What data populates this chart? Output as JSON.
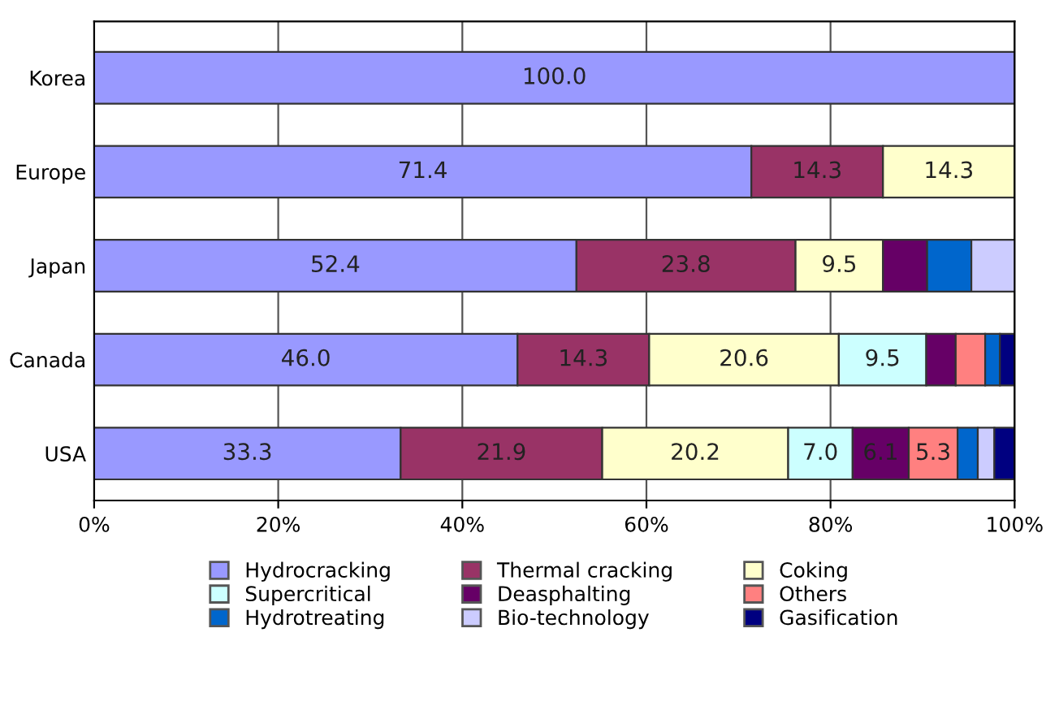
{
  "chart_data": {
    "type": "bar",
    "orientation": "horizontal",
    "stacked": true,
    "categories": [
      "Korea",
      "Europe",
      "Japan",
      "Canada",
      "USA"
    ],
    "series": [
      {
        "name": "Hydrocracking",
        "color": "#9999ff",
        "values": [
          100.0,
          71.4,
          52.4,
          46.0,
          33.3
        ],
        "value_labels": [
          "100.0",
          "71.4",
          "52.4",
          "46.0",
          "33.3"
        ]
      },
      {
        "name": "Thermal cracking",
        "color": "#993366",
        "values": [
          null,
          14.3,
          23.8,
          14.3,
          21.9
        ],
        "value_labels": [
          null,
          "14.3",
          "23.8",
          "14.3",
          "21.9"
        ]
      },
      {
        "name": "Coking",
        "color": "#ffffcc",
        "values": [
          null,
          14.3,
          9.5,
          20.6,
          20.2
        ],
        "value_labels": [
          null,
          "14.3",
          "9.5",
          "20.6",
          "20.2"
        ]
      },
      {
        "name": "Supercritical",
        "color": "#ccffff",
        "values": [
          null,
          null,
          null,
          9.5,
          7.0
        ],
        "value_labels": [
          null,
          null,
          null,
          "9.5",
          "7.0"
        ]
      },
      {
        "name": "Deasphalting",
        "color": "#660066",
        "values": [
          null,
          null,
          4.8,
          3.2,
          6.1
        ],
        "value_labels": [
          null,
          null,
          null,
          null,
          "6.1"
        ]
      },
      {
        "name": "Others",
        "color": "#ff8080",
        "values": [
          null,
          null,
          null,
          3.2,
          5.3
        ],
        "value_labels": [
          null,
          null,
          null,
          null,
          "5.3"
        ]
      },
      {
        "name": "Hydrotreating",
        "color": "#0066cc",
        "values": [
          null,
          null,
          4.8,
          1.6,
          2.2
        ]
      },
      {
        "name": "Bio-technology",
        "color": "#ccccff",
        "values": [
          null,
          null,
          4.8,
          null,
          1.8
        ]
      },
      {
        "name": "Gasification",
        "color": "#000080",
        "values": [
          null,
          null,
          null,
          1.6,
          2.2
        ]
      }
    ],
    "xlim": [
      0,
      100
    ],
    "xticks": [
      {
        "value": 0,
        "label": "0%"
      },
      {
        "value": 20,
        "label": "20%"
      },
      {
        "value": 40,
        "label": "40%"
      },
      {
        "value": 60,
        "label": "60%"
      },
      {
        "value": 80,
        "label": "80%"
      },
      {
        "value": 100,
        "label": "100%"
      }
    ],
    "grid": "x",
    "legend": "bottom"
  }
}
